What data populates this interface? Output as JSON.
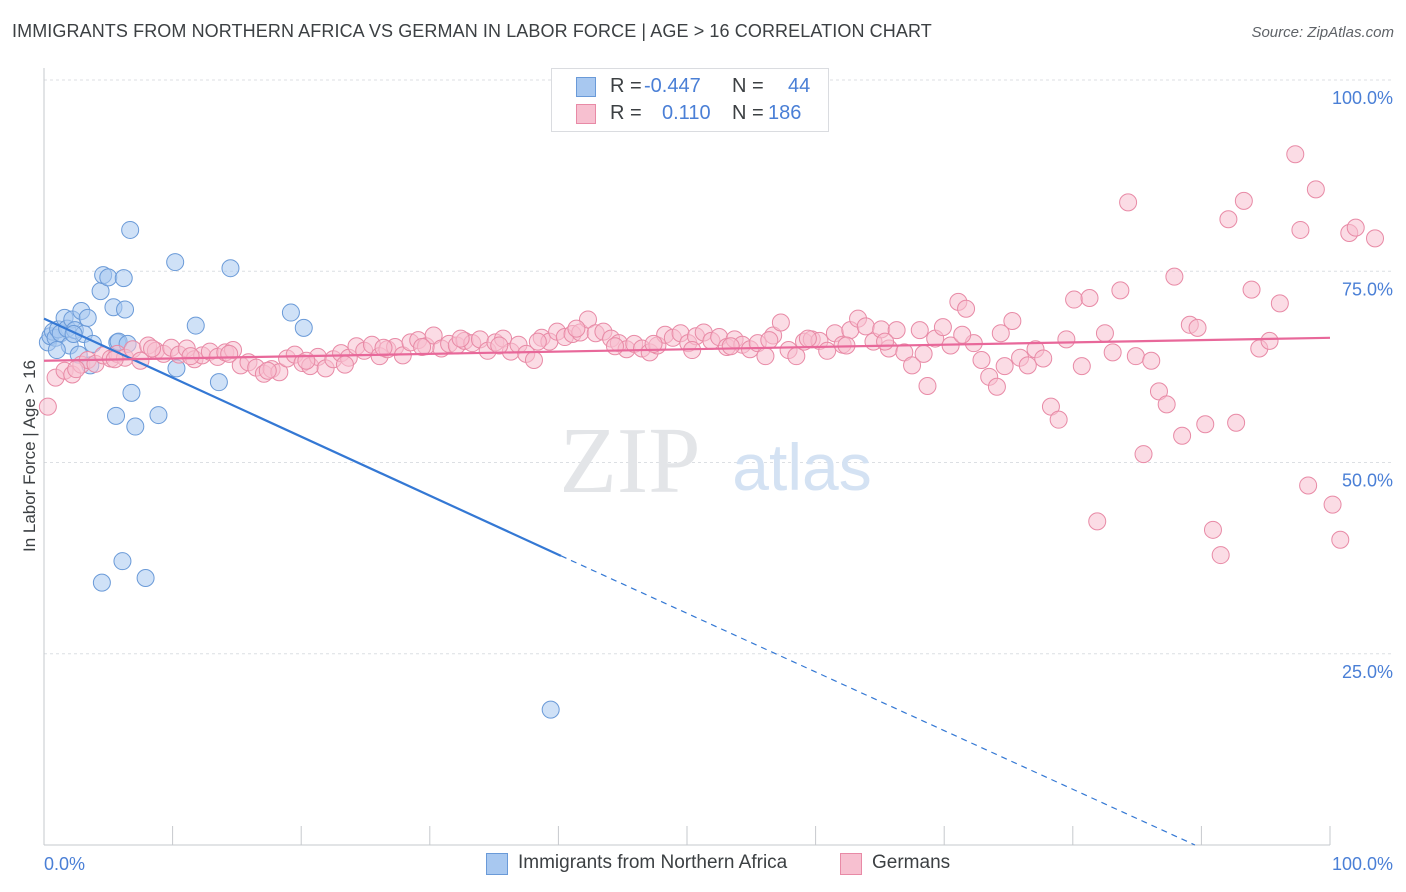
{
  "title": "IMMIGRANTS FROM NORTHERN AFRICA VS GERMAN IN LABOR FORCE | AGE > 16 CORRELATION CHART",
  "source": "Source: ZipAtlas.com",
  "watermark": {
    "zip": "ZIP",
    "atlas": "atlas"
  },
  "legend_stats": [
    {
      "r_label": "R =",
      "r_value": "-0.447",
      "n_label": "N =",
      "n_value": "44",
      "color": "#a8c8f0",
      "stroke": "#6a9ad8"
    },
    {
      "r_label": "R =",
      "r_value": "0.110",
      "n_label": "N =",
      "n_value": "186",
      "color": "#f7c0d0",
      "stroke": "#e88aa6"
    }
  ],
  "bottom_legend": [
    {
      "label": "Immigrants from Northern Africa",
      "color": "#a8c8f0",
      "stroke": "#6a9ad8"
    },
    {
      "label": "Germans",
      "color": "#f7c0d0",
      "stroke": "#e88aa6"
    }
  ],
  "chart_data": {
    "type": "scatter",
    "title": "IMMIGRANTS FROM NORTHERN AFRICA VS GERMAN IN LABOR FORCE | AGE > 16 CORRELATION CHART",
    "xlabel": "",
    "ylabel": "In Labor Force | Age > 16",
    "xlim": [
      0,
      100
    ],
    "ylim": [
      0,
      100
    ],
    "x_tick_labels": [
      "0.0%",
      "100.0%"
    ],
    "y_ticks": [
      25,
      50,
      75,
      100
    ],
    "y_tick_labels": [
      "25.0%",
      "50.0%",
      "75.0%",
      "100.0%"
    ],
    "grid": true,
    "series": [
      {
        "name": "Immigrants from Northern Africa",
        "color": "#a8c8f0",
        "stroke": "#6a9ad8",
        "trend": {
          "x0": 0,
          "y0": 68.8,
          "x1": 40.2,
          "y1": 37.8,
          "dash_to_x": 89.5,
          "dash_to_y": 0
        },
        "trend_color": "#3478d4",
        "points": [
          [
            0.3,
            65.7
          ],
          [
            0.5,
            66.5
          ],
          [
            0.7,
            67.1
          ],
          [
            0.9,
            66.3
          ],
          [
            1.1,
            67.4
          ],
          [
            1.3,
            66.9
          ],
          [
            1.6,
            68.9
          ],
          [
            1.8,
            67.5
          ],
          [
            2.0,
            65.3
          ],
          [
            2.2,
            68.7
          ],
          [
            2.4,
            67.3
          ],
          [
            2.7,
            64.1
          ],
          [
            2.9,
            69.8
          ],
          [
            3.1,
            66.8
          ],
          [
            3.4,
            68.9
          ],
          [
            3.6,
            62.7
          ],
          [
            3.8,
            65.5
          ],
          [
            4.4,
            72.4
          ],
          [
            4.6,
            74.5
          ],
          [
            5.0,
            74.2
          ],
          [
            5.4,
            70.3
          ],
          [
            5.6,
            56.1
          ],
          [
            5.7,
            65.7
          ],
          [
            5.8,
            65.8
          ],
          [
            6.1,
            37.1
          ],
          [
            6.2,
            74.1
          ],
          [
            6.3,
            70.0
          ],
          [
            4.5,
            34.3
          ],
          [
            6.5,
            65.5
          ],
          [
            6.7,
            80.4
          ],
          [
            6.8,
            59.1
          ],
          [
            7.1,
            54.7
          ],
          [
            7.9,
            34.9
          ],
          [
            8.9,
            56.2
          ],
          [
            10.2,
            76.2
          ],
          [
            10.3,
            62.3
          ],
          [
            11.8,
            67.9
          ],
          [
            13.6,
            60.5
          ],
          [
            14.5,
            75.4
          ],
          [
            19.2,
            69.6
          ],
          [
            20.2,
            67.6
          ],
          [
            39.4,
            17.7
          ],
          [
            1.0,
            64.7
          ],
          [
            2.3,
            66.8
          ]
        ]
      },
      {
        "name": "Germans",
        "color": "#f7c0d0",
        "stroke": "#e88aa6",
        "trend": {
          "x0": 0,
          "y0": 63.3,
          "x1": 100,
          "y1": 66.3
        },
        "trend_color": "#e8689a",
        "points": [
          [
            0.3,
            57.3
          ],
          [
            0.9,
            61.1
          ],
          [
            1.6,
            62.0
          ],
          [
            2.2,
            61.5
          ],
          [
            2.9,
            62.8
          ],
          [
            3.4,
            63.4
          ],
          [
            4.0,
            62.9
          ],
          [
            4.6,
            64.0
          ],
          [
            5.2,
            63.6
          ],
          [
            5.7,
            64.2
          ],
          [
            6.3,
            63.7
          ],
          [
            6.9,
            64.8
          ],
          [
            7.5,
            63.3
          ],
          [
            8.1,
            65.3
          ],
          [
            8.7,
            64.6
          ],
          [
            9.3,
            64.2
          ],
          [
            9.9,
            65.0
          ],
          [
            10.5,
            64.1
          ],
          [
            11.1,
            64.9
          ],
          [
            11.7,
            63.5
          ],
          [
            12.3,
            64.0
          ],
          [
            12.9,
            64.5
          ],
          [
            13.5,
            63.8
          ],
          [
            14.1,
            64.4
          ],
          [
            14.7,
            64.7
          ],
          [
            15.3,
            62.7
          ],
          [
            15.9,
            63.1
          ],
          [
            16.5,
            62.4
          ],
          [
            17.1,
            61.6
          ],
          [
            17.7,
            62.2
          ],
          [
            18.3,
            61.8
          ],
          [
            18.9,
            63.6
          ],
          [
            19.5,
            64.1
          ],
          [
            20.1,
            63.0
          ],
          [
            20.7,
            62.6
          ],
          [
            21.3,
            63.8
          ],
          [
            21.9,
            62.3
          ],
          [
            22.5,
            63.5
          ],
          [
            23.1,
            64.3
          ],
          [
            23.7,
            63.7
          ],
          [
            24.3,
            65.2
          ],
          [
            24.9,
            64.6
          ],
          [
            25.5,
            65.4
          ],
          [
            26.1,
            63.9
          ],
          [
            26.7,
            64.8
          ],
          [
            27.3,
            65.1
          ],
          [
            27.9,
            64.0
          ],
          [
            28.5,
            65.7
          ],
          [
            29.1,
            66.0
          ],
          [
            29.7,
            65.2
          ],
          [
            30.3,
            66.6
          ],
          [
            30.9,
            64.9
          ],
          [
            31.5,
            65.5
          ],
          [
            32.1,
            65.3
          ],
          [
            32.7,
            65.9
          ],
          [
            33.3,
            65.6
          ],
          [
            33.9,
            66.1
          ],
          [
            34.5,
            64.6
          ],
          [
            35.1,
            65.7
          ],
          [
            35.7,
            66.2
          ],
          [
            36.3,
            64.5
          ],
          [
            36.9,
            65.4
          ],
          [
            37.5,
            64.2
          ],
          [
            38.1,
            63.4
          ],
          [
            38.7,
            66.3
          ],
          [
            39.3,
            65.8
          ],
          [
            39.9,
            67.1
          ],
          [
            40.5,
            66.4
          ],
          [
            41.1,
            66.8
          ],
          [
            41.7,
            67.0
          ],
          [
            42.3,
            68.7
          ],
          [
            42.9,
            66.9
          ],
          [
            43.5,
            67.1
          ],
          [
            44.1,
            66.2
          ],
          [
            44.7,
            65.6
          ],
          [
            45.3,
            64.8
          ],
          [
            45.9,
            65.5
          ],
          [
            46.5,
            64.9
          ],
          [
            47.1,
            64.4
          ],
          [
            47.7,
            65.3
          ],
          [
            48.3,
            66.7
          ],
          [
            48.9,
            66.3
          ],
          [
            49.5,
            66.9
          ],
          [
            50.1,
            65.6
          ],
          [
            50.7,
            66.5
          ],
          [
            51.3,
            67.0
          ],
          [
            51.9,
            65.9
          ],
          [
            52.5,
            66.4
          ],
          [
            53.1,
            65.1
          ],
          [
            53.7,
            66.1
          ],
          [
            54.3,
            65.4
          ],
          [
            54.9,
            64.8
          ],
          [
            55.5,
            65.6
          ],
          [
            56.1,
            63.9
          ],
          [
            56.7,
            66.6
          ],
          [
            57.3,
            68.3
          ],
          [
            57.9,
            64.7
          ],
          [
            58.5,
            63.9
          ],
          [
            59.1,
            65.8
          ],
          [
            59.7,
            66.1
          ],
          [
            60.3,
            65.9
          ],
          [
            60.9,
            64.6
          ],
          [
            61.5,
            66.9
          ],
          [
            62.1,
            65.4
          ],
          [
            62.7,
            67.3
          ],
          [
            63.3,
            68.8
          ],
          [
            63.9,
            67.8
          ],
          [
            64.5,
            65.8
          ],
          [
            65.1,
            67.4
          ],
          [
            65.7,
            64.9
          ],
          [
            66.3,
            67.3
          ],
          [
            66.9,
            64.4
          ],
          [
            67.5,
            62.7
          ],
          [
            68.1,
            67.3
          ],
          [
            68.7,
            60.0
          ],
          [
            69.3,
            66.2
          ],
          [
            69.9,
            67.7
          ],
          [
            70.5,
            65.3
          ],
          [
            71.1,
            71.0
          ],
          [
            71.7,
            70.1
          ],
          [
            72.3,
            65.6
          ],
          [
            72.9,
            63.4
          ],
          [
            73.5,
            61.2
          ],
          [
            74.1,
            59.9
          ],
          [
            74.7,
            62.6
          ],
          [
            75.3,
            68.5
          ],
          [
            75.9,
            63.7
          ],
          [
            76.5,
            62.7
          ],
          [
            77.1,
            64.8
          ],
          [
            77.7,
            63.6
          ],
          [
            78.3,
            57.3
          ],
          [
            78.9,
            55.6
          ],
          [
            79.5,
            66.1
          ],
          [
            80.1,
            71.3
          ],
          [
            80.7,
            62.6
          ],
          [
            81.3,
            71.5
          ],
          [
            81.9,
            42.3
          ],
          [
            82.5,
            66.9
          ],
          [
            83.1,
            64.4
          ],
          [
            83.7,
            72.5
          ],
          [
            84.3,
            84.0
          ],
          [
            84.9,
            63.9
          ],
          [
            85.5,
            51.1
          ],
          [
            86.1,
            63.3
          ],
          [
            86.7,
            59.3
          ],
          [
            87.3,
            57.6
          ],
          [
            87.9,
            74.3
          ],
          [
            88.5,
            53.5
          ],
          [
            89.1,
            68.0
          ],
          [
            89.7,
            67.6
          ],
          [
            90.3,
            55.0
          ],
          [
            90.9,
            41.2
          ],
          [
            91.5,
            37.9
          ],
          [
            92.1,
            81.8
          ],
          [
            92.7,
            55.2
          ],
          [
            93.3,
            84.2
          ],
          [
            93.9,
            72.6
          ],
          [
            94.5,
            64.9
          ],
          [
            95.3,
            65.9
          ],
          [
            96.1,
            70.8
          ],
          [
            97.3,
            90.3
          ],
          [
            97.7,
            80.4
          ],
          [
            98.3,
            47.0
          ],
          [
            98.9,
            85.7
          ],
          [
            100.2,
            44.5
          ],
          [
            100.8,
            39.9
          ],
          [
            101.5,
            80.0
          ],
          [
            102.0,
            80.7
          ],
          [
            103.5,
            79.3
          ],
          [
            2.5,
            62.2
          ],
          [
            5.5,
            63.5
          ],
          [
            8.4,
            64.9
          ],
          [
            11.4,
            63.9
          ],
          [
            14.4,
            64.2
          ],
          [
            17.4,
            62.0
          ],
          [
            20.4,
            63.3
          ],
          [
            23.4,
            62.8
          ],
          [
            26.4,
            65.0
          ],
          [
            29.4,
            65.1
          ],
          [
            32.4,
            66.2
          ],
          [
            35.4,
            65.3
          ],
          [
            38.4,
            65.8
          ],
          [
            41.4,
            67.5
          ],
          [
            44.4,
            65.2
          ],
          [
            47.4,
            65.5
          ],
          [
            50.4,
            64.7
          ],
          [
            53.4,
            65.2
          ],
          [
            56.4,
            66.0
          ],
          [
            59.4,
            66.2
          ],
          [
            62.4,
            65.3
          ],
          [
            65.4,
            65.8
          ],
          [
            68.4,
            64.2
          ],
          [
            71.4,
            66.7
          ],
          [
            74.4,
            66.9
          ]
        ]
      }
    ]
  }
}
